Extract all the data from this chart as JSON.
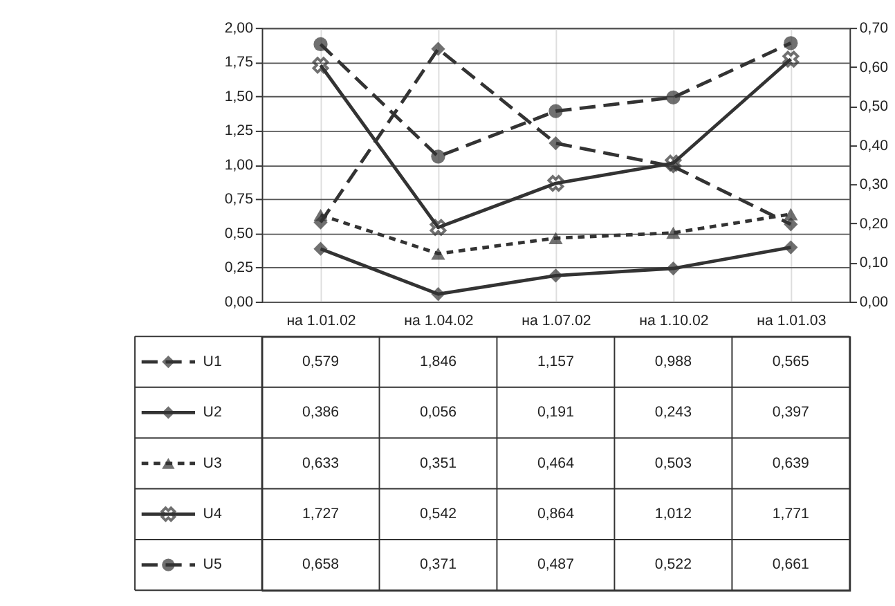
{
  "chart_data": {
    "type": "line",
    "categories": [
      "на 1.01.02",
      "на 1.04.02",
      "на 1.07.02",
      "на 1.10.02",
      "на 1.01.03"
    ],
    "series": [
      {
        "name": "U1",
        "color": "#333333",
        "line_style": "dashed",
        "marker": "diamond",
        "values": [
          0.579,
          1.846,
          1.157,
          0.988,
          0.565
        ],
        "value_labels": [
          "0,579",
          "1,846",
          "1,157",
          "0,988",
          "0,565"
        ]
      },
      {
        "name": "U2",
        "color": "#333333",
        "line_style": "solid",
        "marker": "diamond",
        "values": [
          0.386,
          0.056,
          0.191,
          0.243,
          0.397
        ],
        "value_labels": [
          "0,386",
          "0,056",
          "0,191",
          "0,243",
          "0,397"
        ]
      },
      {
        "name": "U3",
        "color": "#333333",
        "line_style": "dotted",
        "marker": "triangle",
        "values": [
          0.633,
          0.351,
          0.464,
          0.503,
          0.639
        ],
        "value_labels": [
          "0,633",
          "0,351",
          "0,464",
          "0,503",
          "0,639"
        ]
      },
      {
        "name": "U4",
        "color": "#333333",
        "line_style": "solid",
        "marker": "cross",
        "values": [
          1.727,
          0.542,
          0.864,
          1.012,
          1.771
        ],
        "value_labels": [
          "1,727",
          "0,542",
          "0,864",
          "1,012",
          "1,771"
        ]
      },
      {
        "name": "U5",
        "color": "#333333",
        "line_style": "dashed",
        "marker": "circle",
        "axis": "y2",
        "values": [
          0.658,
          0.371,
          0.487,
          0.522,
          0.661
        ],
        "value_labels": [
          "0,658",
          "0,371",
          "0,487",
          "0,522",
          "0,661"
        ]
      }
    ],
    "ylim": [
      0,
      2
    ],
    "yticks": [
      {
        "value": 0,
        "label": "0,00"
      },
      {
        "value": 0.25,
        "label": "0,25"
      },
      {
        "value": 0.5,
        "label": "0,50"
      },
      {
        "value": 0.75,
        "label": "0,75"
      },
      {
        "value": 1,
        "label": "1,00"
      },
      {
        "value": 1.25,
        "label": "1,25"
      },
      {
        "value": 1.5,
        "label": "1,50"
      },
      {
        "value": 1.75,
        "label": "1,75"
      },
      {
        "value": 2,
        "label": "2,00"
      }
    ],
    "y2lim": [
      0,
      0.7
    ],
    "y2ticks": [
      {
        "value": 0,
        "label": "0,00"
      },
      {
        "value": 0.1,
        "label": "0,10"
      },
      {
        "value": 0.2,
        "label": "0,20"
      },
      {
        "value": 0.3,
        "label": "0,30"
      },
      {
        "value": 0.4,
        "label": "0,40"
      },
      {
        "value": 0.5,
        "label": "0,50"
      },
      {
        "value": 0.6,
        "label": "0,60"
      },
      {
        "value": 0.7,
        "label": "0,70"
      }
    ],
    "grid": true,
    "legend": "bottom"
  }
}
